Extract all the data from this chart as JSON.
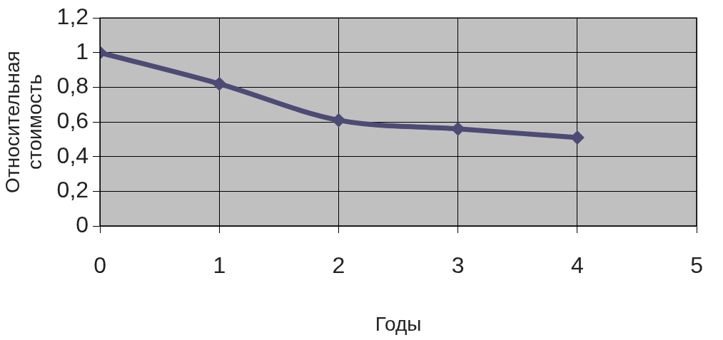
{
  "chart_data": {
    "type": "line",
    "xlabel": "Годы",
    "ylabel": "Относительная стоимость",
    "x": [
      0,
      1,
      2,
      3,
      4
    ],
    "series": [
      {
        "color": "#4d4b74",
        "values": [
          1.0,
          0.82,
          0.61,
          0.56,
          0.51
        ]
      }
    ],
    "xlim": [
      0,
      5
    ],
    "xticks": [
      0,
      1,
      2,
      3,
      4,
      5
    ],
    "ylim": [
      0,
      1.2
    ],
    "yticks": [
      0,
      {
        "value": 0.2,
        "label": "0,2"
      },
      {
        "value": 0.4,
        "label": "0,4"
      },
      {
        "value": 0.6,
        "label": "0,6"
      },
      {
        "value": 0.8,
        "label": "0,8"
      },
      1,
      {
        "value": 1.2,
        "label": "1,2"
      }
    ],
    "grid": true,
    "legend": false,
    "marker": "diamond",
    "line_style": "solid"
  }
}
